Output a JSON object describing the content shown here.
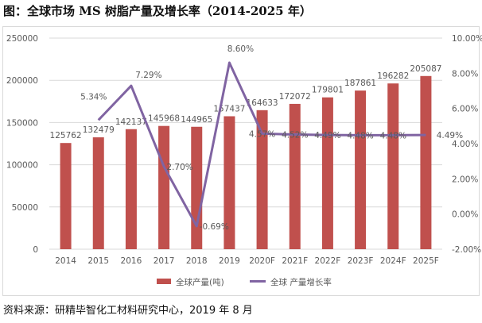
{
  "title": "图：全球市场 MS 树脂产量及增长率（2014-2025 年）",
  "source": "资料来源：研精毕智化工材料研究中心，2019 年 8 月",
  "chart_data": {
    "type": "bar+line",
    "categories": [
      "2014",
      "2015",
      "2016",
      "2017",
      "2018",
      "2019",
      "2020F",
      "2021F",
      "2022F",
      "2023F",
      "2024F",
      "2025F"
    ],
    "series": [
      {
        "name": "全球产量(吨)",
        "type": "bar",
        "axis": "left",
        "color": "#c0504d",
        "values": [
          125762,
          132479,
          142137,
          145968,
          144965,
          157437,
          164633,
          172072,
          179801,
          187861,
          196282,
          205087
        ]
      },
      {
        "name": "全球 产量增长率",
        "type": "line",
        "axis": "right",
        "color": "#8064a2",
        "values": [
          null,
          5.34,
          7.29,
          2.7,
          -0.69,
          8.6,
          4.57,
          4.52,
          4.49,
          4.48,
          4.48,
          4.49
        ],
        "labels": [
          null,
          "5.34%",
          "7.29%",
          "2.70%",
          "-0.69%",
          "8.60%",
          "4.57%",
          "4.52%",
          "4.49%",
          "4.48%",
          "4.48%",
          "4.49%"
        ]
      }
    ],
    "y_left": {
      "min": 0,
      "max": 250000,
      "ticks": [
        "0",
        "50000",
        "100000",
        "150000",
        "200000",
        "250000"
      ]
    },
    "y_right": {
      "min": -2,
      "max": 10,
      "ticks": [
        "-2.00%",
        "0.00%",
        "2.00%",
        "4.00%",
        "6.00%",
        "8.00%",
        "10.00%"
      ]
    },
    "grid": true,
    "legend": "bottom"
  }
}
